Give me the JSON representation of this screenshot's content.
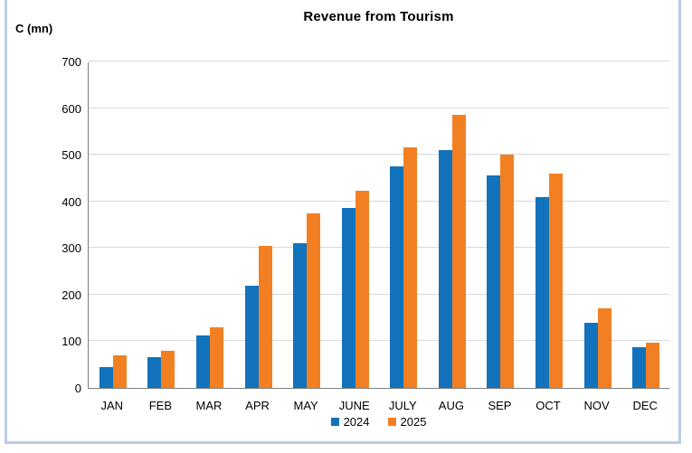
{
  "chart_data": {
    "type": "bar",
    "title": "Revenue from Tourism",
    "ylabel": "C (mn)",
    "xlabel": "",
    "categories": [
      "JAN",
      "FEB",
      "MAR",
      "APR",
      "MAY",
      "JUNE",
      "JULY",
      "AUG",
      "SEP",
      "OCT",
      "NOV",
      "DEC"
    ],
    "series": [
      {
        "name": "2024",
        "color": "#1273BC",
        "values": [
          45,
          65,
          113,
          220,
          310,
          385,
          475,
          510,
          455,
          410,
          140,
          87
        ]
      },
      {
        "name": "2025",
        "color": "#F28022",
        "values": [
          70,
          80,
          130,
          305,
          375,
          422,
          515,
          585,
          500,
          460,
          170,
          97
        ]
      }
    ],
    "ylim": [
      0,
      700
    ],
    "yticks": [
      0,
      100,
      200,
      300,
      400,
      500,
      600,
      700
    ],
    "grid": true,
    "legend_position": "bottom"
  },
  "colors": {
    "frame_border": "#B9CDE5",
    "axis_line": "#808080",
    "gridline": "#D9D9D9",
    "background": "#FFFFFF",
    "text": "#000000"
  }
}
